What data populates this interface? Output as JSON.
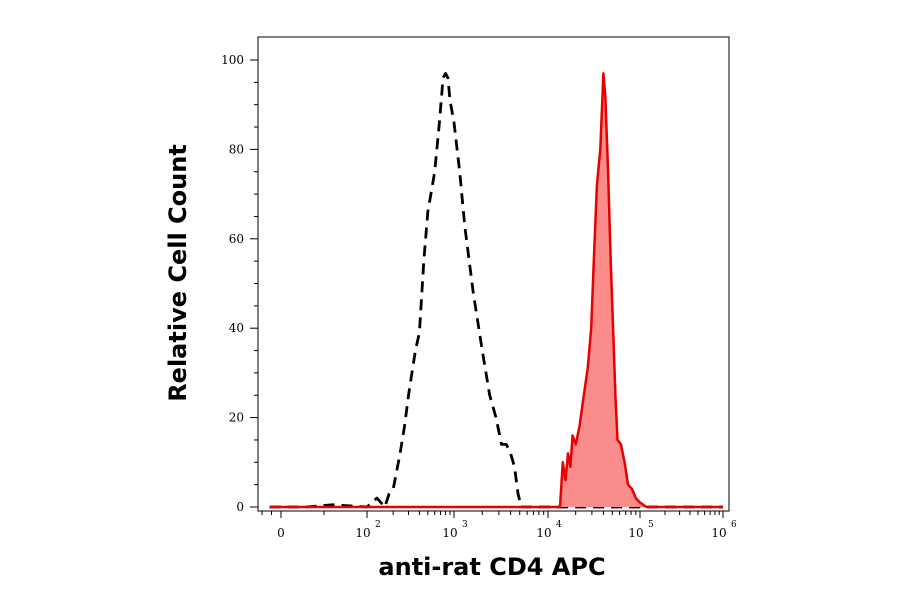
{
  "chart_data": {
    "type": "area",
    "title": "",
    "xlabel": "anti-rat CD4 APC",
    "ylabel": "Relative Cell Count",
    "x_scale": "biexponential (logicle)",
    "xlim": [
      -100,
      1000000
    ],
    "ylim": [
      0,
      100
    ],
    "x_ticks": [
      {
        "base": "0",
        "exp": ""
      },
      {
        "base": "10",
        "exp": "2"
      },
      {
        "base": "10",
        "exp": "3"
      },
      {
        "base": "10",
        "exp": "4"
      },
      {
        "base": "10",
        "exp": "5"
      },
      {
        "base": "10",
        "exp": "6"
      }
    ],
    "y_ticks": [
      "0",
      "20",
      "40",
      "60",
      "80",
      "100"
    ],
    "series": [
      {
        "style": "dashed-black-line",
        "color": "#000000",
        "points": [
          [
            -60,
            0
          ],
          [
            30,
            0
          ],
          [
            60,
            0.5
          ],
          [
            100,
            0
          ],
          [
            130,
            2
          ],
          [
            160,
            0
          ],
          [
            180,
            3
          ],
          [
            200,
            4
          ],
          [
            240,
            12
          ],
          [
            270,
            18
          ],
          [
            300,
            25
          ],
          [
            360,
            35
          ],
          [
            400,
            39
          ],
          [
            450,
            55
          ],
          [
            500,
            66
          ],
          [
            600,
            75
          ],
          [
            680,
            86
          ],
          [
            750,
            96
          ],
          [
            800,
            97
          ],
          [
            850,
            96
          ],
          [
            900,
            91
          ],
          [
            1000,
            86
          ],
          [
            1150,
            75
          ],
          [
            1300,
            63
          ],
          [
            1600,
            48
          ],
          [
            2000,
            35
          ],
          [
            2400,
            25
          ],
          [
            2800,
            20
          ],
          [
            3200,
            14
          ],
          [
            3600,
            14
          ],
          [
            4000,
            12
          ],
          [
            4400,
            9
          ],
          [
            4800,
            3
          ],
          [
            5200,
            0
          ],
          [
            6000,
            0
          ],
          [
            1000000,
            0
          ]
        ]
      },
      {
        "style": "filled-red-area",
        "color": "#e60000",
        "fill": "#fa8c8c",
        "points": [
          [
            -60,
            0
          ],
          [
            10000,
            0
          ],
          [
            13500,
            0
          ],
          [
            14500,
            10
          ],
          [
            15500,
            6
          ],
          [
            16500,
            12
          ],
          [
            17500,
            9
          ],
          [
            18500,
            16
          ],
          [
            20000,
            14
          ],
          [
            22000,
            18
          ],
          [
            24500,
            25
          ],
          [
            27000,
            31
          ],
          [
            29500,
            40
          ],
          [
            31500,
            55
          ],
          [
            34000,
            72
          ],
          [
            37000,
            80
          ],
          [
            40000,
            97
          ],
          [
            42000,
            92
          ],
          [
            45000,
            75
          ],
          [
            48000,
            55
          ],
          [
            51000,
            40
          ],
          [
            54000,
            25
          ],
          [
            57000,
            15
          ],
          [
            62000,
            14
          ],
          [
            68000,
            10
          ],
          [
            74000,
            5
          ],
          [
            82000,
            4
          ],
          [
            90000,
            2
          ],
          [
            100000,
            1
          ],
          [
            120000,
            0
          ],
          [
            1000000,
            0
          ]
        ]
      }
    ],
    "grid": false,
    "legend": "none"
  }
}
